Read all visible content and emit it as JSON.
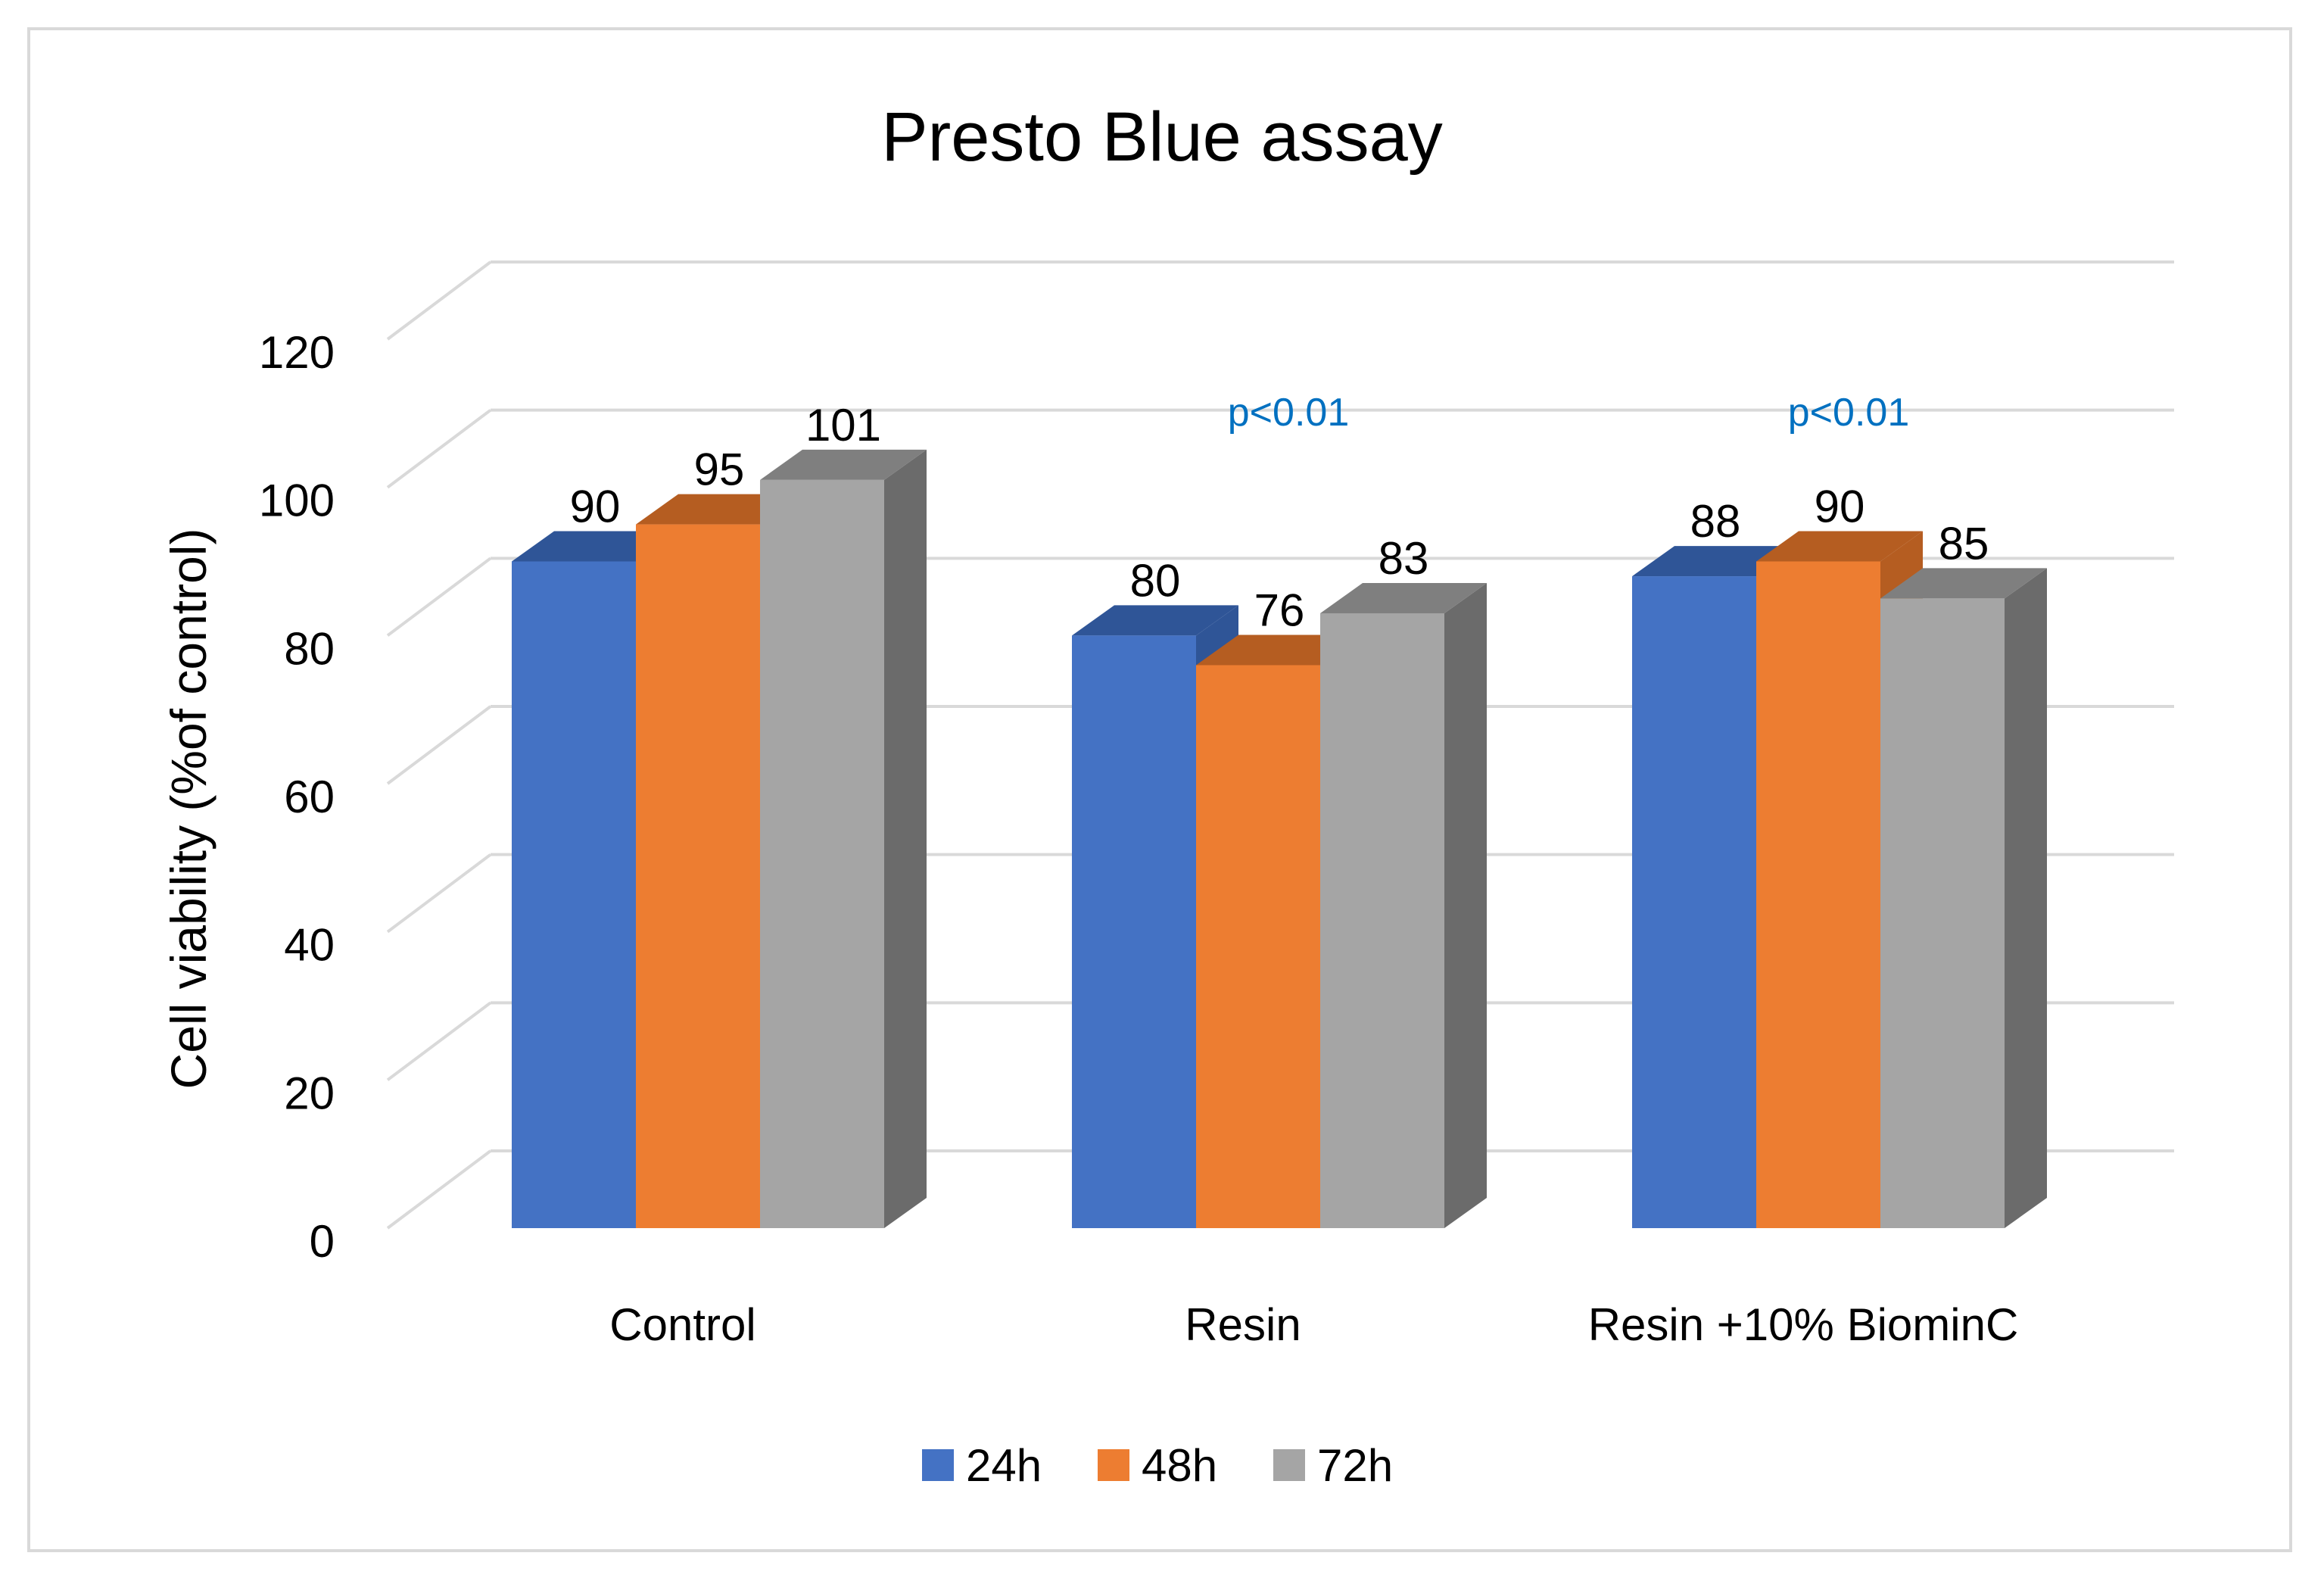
{
  "chart_data": {
    "type": "bar",
    "title": "Presto Blue assay",
    "xlabel": "",
    "ylabel": "Cell viability (%of control)",
    "ylim": [
      0,
      120
    ],
    "yticks": [
      0,
      20,
      40,
      60,
      80,
      100,
      120
    ],
    "categories": [
      "Control",
      "Resin",
      "Resin +10%  BiominC"
    ],
    "series": [
      {
        "name": "24h",
        "values": [
          90,
          80,
          88
        ],
        "color": "#4472c4",
        "top_color": "#2f5597",
        "side_color": "#2f5597"
      },
      {
        "name": "48h",
        "values": [
          95,
          76,
          90
        ],
        "color": "#ed7d31",
        "top_color": "#b55d21",
        "side_color": "#b55d21"
      },
      {
        "name": "72h",
        "values": [
          101,
          83,
          85
        ],
        "color": "#a5a5a5",
        "top_color": "#7f7f7f",
        "side_color": "#6b6b6b"
      }
    ],
    "annotations": [
      {
        "category": "Resin",
        "text": "p<0.01",
        "color": "#0070c0"
      },
      {
        "category": "Resin +10%  BiominC",
        "text": "p<0.01",
        "color": "#0070c0"
      }
    ],
    "grid": true,
    "three_d": true,
    "legend_position": "bottom"
  }
}
